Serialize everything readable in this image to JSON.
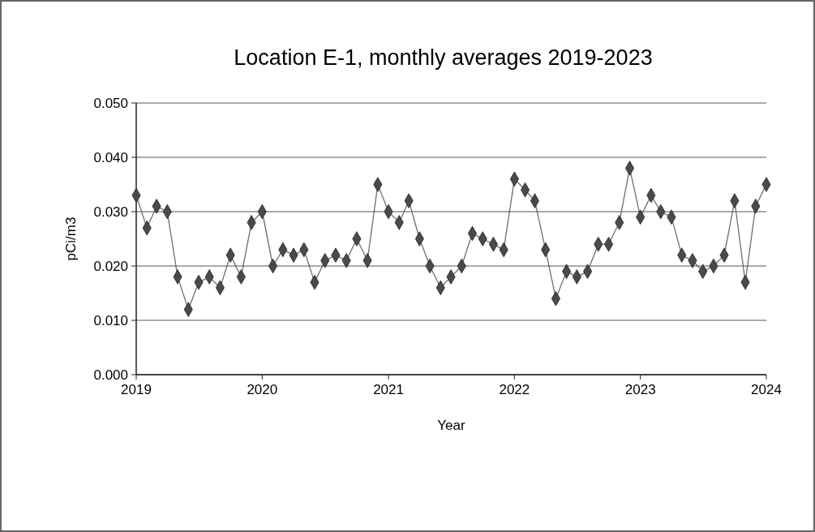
{
  "chart_data": {
    "type": "line",
    "title": "Location E-1, monthly averages 2019-2023",
    "xlabel": "Year",
    "ylabel": "pCi/m3",
    "x": [
      "2019-01",
      "2019-02",
      "2019-03",
      "2019-04",
      "2019-05",
      "2019-06",
      "2019-07",
      "2019-08",
      "2019-09",
      "2019-10",
      "2019-11",
      "2019-12",
      "2020-01",
      "2020-02",
      "2020-03",
      "2020-04",
      "2020-05",
      "2020-06",
      "2020-07",
      "2020-08",
      "2020-09",
      "2020-10",
      "2020-11",
      "2020-12",
      "2021-01",
      "2021-02",
      "2021-03",
      "2021-04",
      "2021-05",
      "2021-06",
      "2021-07",
      "2021-08",
      "2021-09",
      "2021-10",
      "2021-11",
      "2021-12",
      "2022-01",
      "2022-02",
      "2022-03",
      "2022-04",
      "2022-05",
      "2022-06",
      "2022-07",
      "2022-08",
      "2022-09",
      "2022-10",
      "2022-11",
      "2022-12",
      "2023-01",
      "2023-02",
      "2023-03",
      "2023-04",
      "2023-05",
      "2023-06",
      "2023-07",
      "2023-08",
      "2023-09",
      "2023-10",
      "2023-11",
      "2023-12",
      "2024-01"
    ],
    "series": [
      {
        "color": "#4a4a4a",
        "values": [
          0.033,
          0.027,
          0.031,
          0.03,
          0.018,
          0.012,
          0.017,
          0.018,
          0.016,
          0.022,
          0.018,
          0.028,
          0.03,
          0.02,
          0.023,
          0.022,
          0.023,
          0.017,
          0.021,
          0.022,
          0.021,
          0.025,
          0.021,
          0.035,
          0.03,
          0.028,
          0.032,
          0.025,
          0.02,
          0.016,
          0.018,
          0.02,
          0.026,
          0.025,
          0.024,
          0.023,
          0.036,
          0.034,
          0.032,
          0.023,
          0.014,
          0.019,
          0.018,
          0.019,
          0.024,
          0.024,
          0.028,
          0.038,
          0.029,
          0.033,
          0.03,
          0.029,
          0.022,
          0.021,
          0.019,
          0.02,
          0.022,
          0.032,
          0.017,
          0.031,
          0.035
        ]
      }
    ],
    "xlim": [
      "2019-01",
      "2024-01"
    ],
    "xticks": [
      {
        "value": "2019-01",
        "label": "2019"
      },
      {
        "value": "2020-01",
        "label": "2020"
      },
      {
        "value": "2021-01",
        "label": "2021"
      },
      {
        "value": "2022-01",
        "label": "2022"
      },
      {
        "value": "2023-01",
        "label": "2023"
      },
      {
        "value": "2024-01",
        "label": "2024"
      }
    ],
    "ylim": [
      0,
      0.05
    ],
    "yticks": [
      {
        "value": 0,
        "label": "0.000"
      },
      {
        "value": 0.01,
        "label": "0.010"
      },
      {
        "value": 0.02,
        "label": "0.020"
      },
      {
        "value": 0.03,
        "label": "0.030"
      },
      {
        "value": 0.04,
        "label": "0.040"
      },
      {
        "value": 0.05,
        "label": "0.050"
      }
    ],
    "grid": "y",
    "marker": "diamond",
    "line_style": "solid"
  }
}
